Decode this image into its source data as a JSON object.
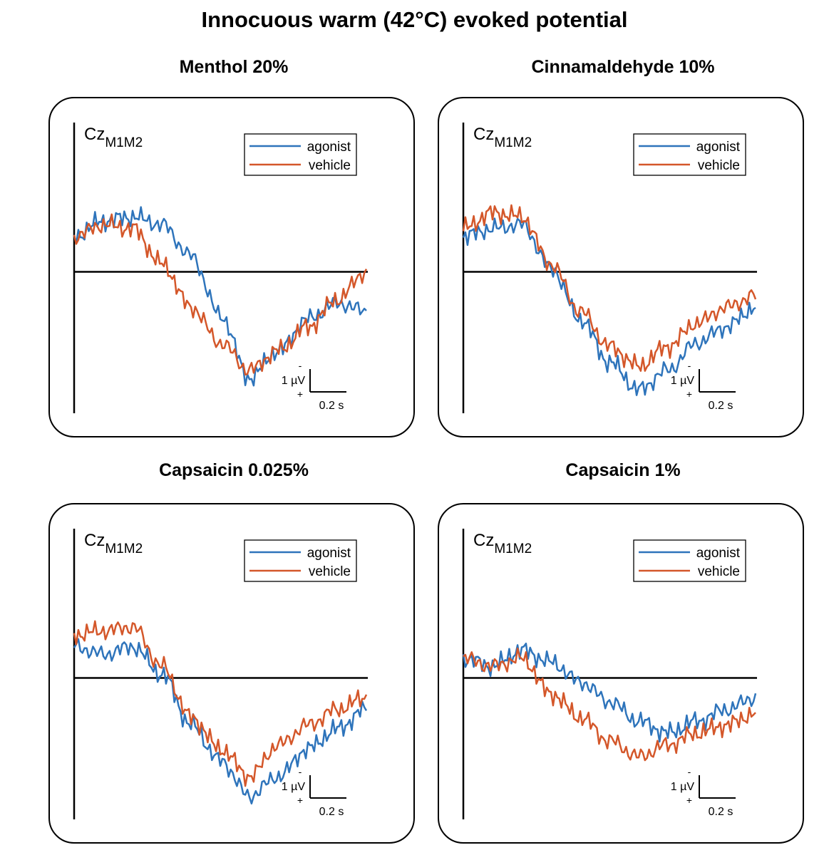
{
  "title": "Innocuous warm (42°C) evoked potential",
  "colors": {
    "agonist": "#2e74bb",
    "vehicle": "#d4572a",
    "axis": "#000000"
  },
  "chart_data": [
    {
      "type": "line",
      "title": "Menthol 20%",
      "channel": "Cz",
      "channel_sub": "M1M2",
      "legend": [
        "agonist",
        "vehicle"
      ],
      "scalebar": {
        "y_label": "1 µV",
        "x_label": "0.2 s",
        "neg": "-",
        "pos": "+"
      },
      "x_unit": "s",
      "y_unit": "µV (negative up)",
      "xlim": [
        0,
        1.0
      ],
      "ylim": [
        -3.2,
        2.6
      ],
      "x": [
        0,
        0.1,
        0.2,
        0.3,
        0.4,
        0.5,
        0.6,
        0.7,
        0.8,
        0.9,
        1.0
      ],
      "series": [
        {
          "name": "agonist",
          "values": [
            0.9,
            1.3,
            1.4,
            1.2,
            0.4,
            -1.1,
            -2.7,
            -2.0,
            -1.2,
            -0.8,
            -1.0
          ]
        },
        {
          "name": "vehicle",
          "values": [
            0.9,
            1.2,
            1.1,
            0.2,
            -0.9,
            -1.8,
            -2.5,
            -2.0,
            -1.4,
            -0.7,
            0.0
          ]
        }
      ]
    },
    {
      "type": "line",
      "title": "Cinnamaldehyde 10%",
      "channel": "Cz",
      "channel_sub": "M1M2",
      "legend": [
        "agonist",
        "vehicle"
      ],
      "scalebar": {
        "y_label": "1 µV",
        "x_label": "0.2 s",
        "neg": "-",
        "pos": "+"
      },
      "x_unit": "s",
      "y_unit": "µV (negative up)",
      "xlim": [
        0,
        1.0
      ],
      "ylim": [
        -3.2,
        2.6
      ],
      "x": [
        0,
        0.1,
        0.2,
        0.3,
        0.4,
        0.5,
        0.6,
        0.7,
        0.8,
        0.9,
        1.0
      ],
      "series": [
        {
          "name": "agonist",
          "values": [
            0.9,
            1.1,
            1.2,
            0.1,
            -1.2,
            -2.3,
            -3.0,
            -2.5,
            -1.8,
            -1.4,
            -0.9
          ]
        },
        {
          "name": "vehicle",
          "values": [
            1.1,
            1.5,
            1.4,
            0.2,
            -1.0,
            -1.9,
            -2.4,
            -1.9,
            -1.3,
            -0.9,
            -0.6
          ]
        }
      ]
    },
    {
      "type": "line",
      "title": "Capsaicin 0.025%",
      "channel": "Cz",
      "channel_sub": "M1M2",
      "legend": [
        "agonist",
        "vehicle"
      ],
      "scalebar": {
        "y_label": "1 µV",
        "x_label": "0.2 s",
        "neg": "-",
        "pos": "+"
      },
      "x_unit": "s",
      "y_unit": "µV (negative up)",
      "xlim": [
        0,
        1.0
      ],
      "ylim": [
        -3.2,
        2.6
      ],
      "x": [
        0,
        0.1,
        0.2,
        0.3,
        0.4,
        0.5,
        0.6,
        0.7,
        0.8,
        0.9,
        1.0
      ],
      "series": [
        {
          "name": "agonist",
          "values": [
            0.8,
            0.6,
            0.8,
            0.1,
            -1.2,
            -2.1,
            -3.0,
            -2.5,
            -1.8,
            -1.3,
            -0.8
          ]
        },
        {
          "name": "vehicle",
          "values": [
            1.1,
            1.2,
            1.3,
            0.3,
            -1.0,
            -1.8,
            -2.5,
            -1.7,
            -1.2,
            -0.8,
            -0.5
          ]
        }
      ]
    },
    {
      "type": "line",
      "title": "Capsaicin 1%",
      "channel": "Cz",
      "channel_sub": "M1M2",
      "legend": [
        "agonist",
        "vehicle"
      ],
      "scalebar": {
        "y_label": "1 µV",
        "x_label": "0.2 s",
        "neg": "-",
        "pos": "+"
      },
      "x_unit": "s",
      "y_unit": "µV (negative up)",
      "xlim": [
        0,
        1.0
      ],
      "ylim": [
        -3.2,
        2.6
      ],
      "x": [
        0,
        0.1,
        0.2,
        0.3,
        0.4,
        0.5,
        0.6,
        0.7,
        0.8,
        0.9,
        1.0
      ],
      "series": [
        {
          "name": "agonist",
          "values": [
            0.5,
            0.3,
            0.7,
            0.4,
            -0.1,
            -0.6,
            -1.1,
            -1.4,
            -1.1,
            -0.8,
            -0.5
          ]
        },
        {
          "name": "vehicle",
          "values": [
            0.5,
            0.3,
            0.5,
            -0.4,
            -1.0,
            -1.6,
            -2.0,
            -1.7,
            -1.4,
            -1.2,
            -0.9
          ]
        }
      ]
    }
  ]
}
